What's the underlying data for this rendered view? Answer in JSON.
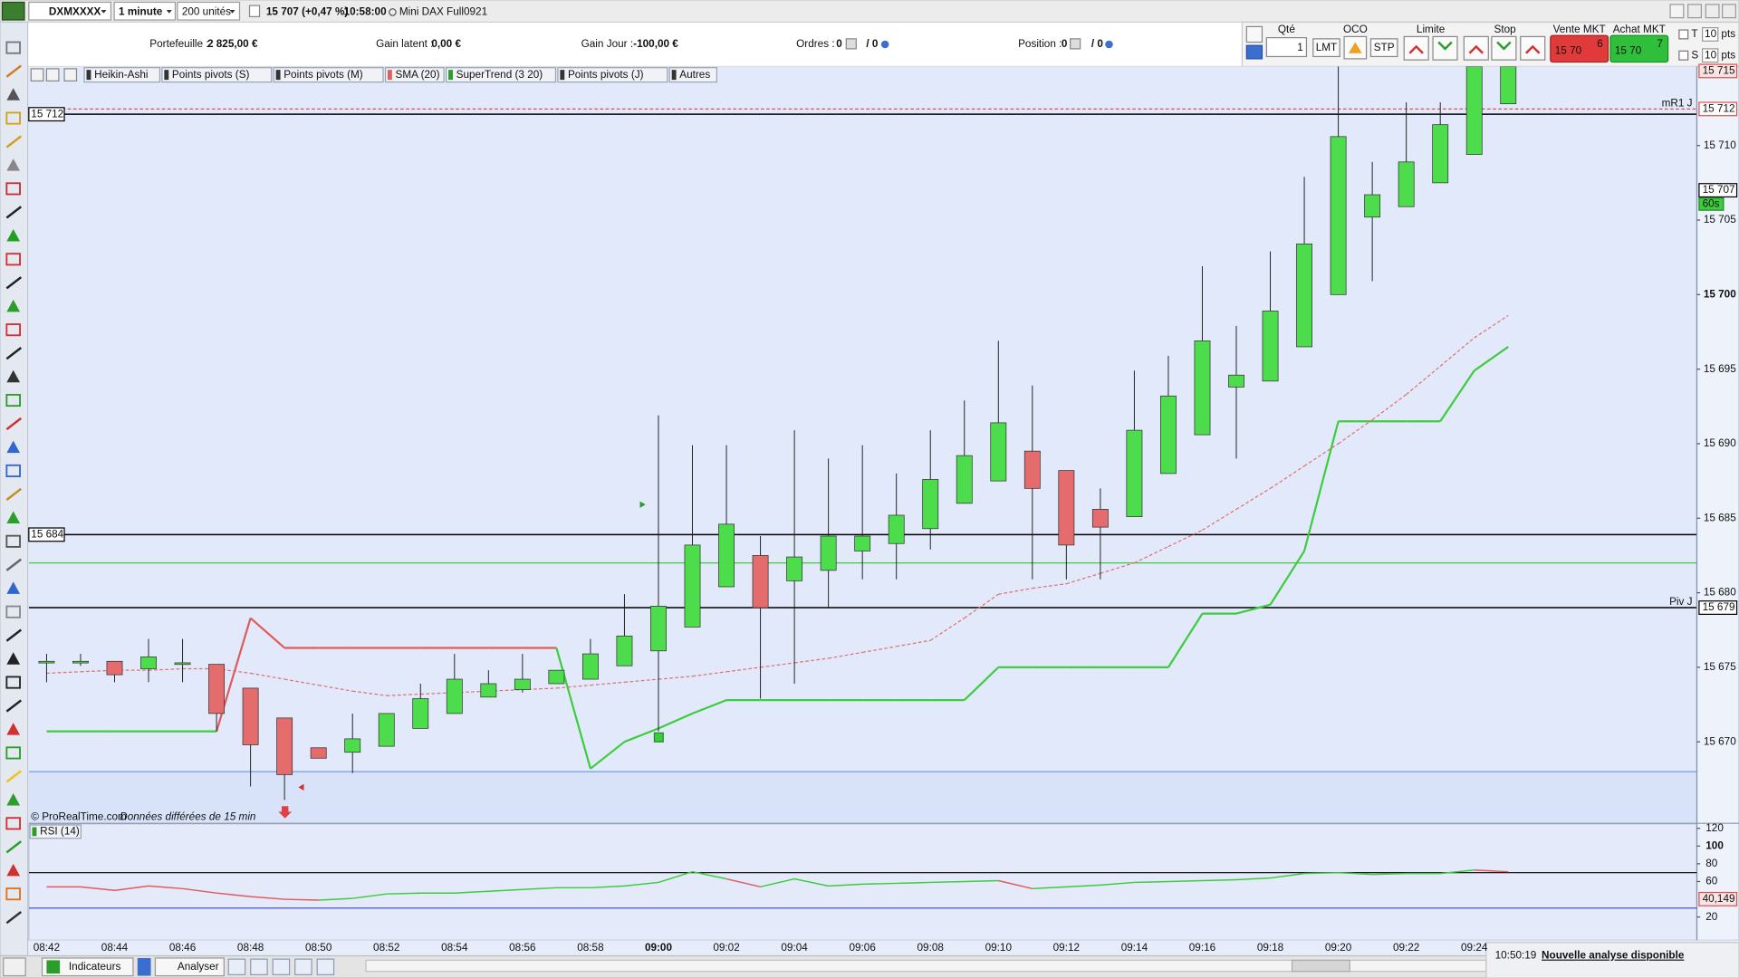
{
  "toolbar": {
    "symbol": "DXMXXXX",
    "interval": "1 minute",
    "units": "200 unités",
    "price_change": "15 707 (+0,47 %)",
    "time": "10:58:00",
    "instrument": "Mini DAX Full0921"
  },
  "order_bar": {
    "portfolio_label": "Portefeuille :",
    "portfolio_value": "2 825,00 €",
    "latent_label": "Gain latent :",
    "latent_value": "0,00 €",
    "day_label": "Gain Jour :",
    "day_value": "-100,00 €",
    "orders_label": "Ordres :",
    "orders_a": "0",
    "orders_b": "/ 0",
    "position_label": "Position :",
    "position_a": "0",
    "position_b": "/ 0",
    "qty_label": "Qté",
    "qty": "1",
    "oco": "OCO",
    "lmt": "LMT",
    "stp": "STP",
    "limit": "Limite",
    "stop": "Stop",
    "sell": "Vente MKT",
    "buy": "Achat MKT",
    "sell_price": "15 70",
    "sell_pip": "6",
    "buy_price": "15 70",
    "buy_pip": "7",
    "t_label": "T",
    "t_value": "10",
    "t_unit": "pts",
    "s_label": "S",
    "s_value": "10",
    "s_unit": "pts"
  },
  "indicator_tabs": [
    "Heikin-Ashi",
    "Points pivots (S)",
    "Points pivots (M)",
    "SMA (20)",
    "SuperTrend (3 20)",
    "Points pivots (J)",
    "Autres"
  ],
  "chart_data": [
    {
      "type": "candlestick",
      "categories": [
        "08:42",
        null,
        "08:44",
        null,
        "08:46",
        null,
        "08:48",
        null,
        "08:50",
        null,
        "08:52",
        null,
        "08:54",
        null,
        "08:56",
        null,
        "08:58",
        null,
        "09:00",
        null,
        "09:02",
        null,
        "09:04",
        null,
        "09:06",
        null,
        "09:08",
        null,
        "09:10",
        null,
        "09:12",
        null,
        "09:14",
        null,
        "09:16",
        null,
        "09:18",
        null,
        "09:20",
        null,
        "09:22",
        null,
        "09:24",
        null
      ],
      "open": [
        15675.3,
        15675.3,
        15675.4,
        15674.9,
        15675.2,
        15675.2,
        15673.6,
        15671.6,
        15669.6,
        15669.3,
        15669.7,
        15670.9,
        15671.9,
        15673.0,
        15673.5,
        15673.9,
        15674.2,
        15675.1,
        15676.1,
        15677.7,
        15680.4,
        15682.5,
        15680.8,
        15681.5,
        15682.8,
        15683.3,
        15684.3,
        15686.0,
        15687.5,
        15689.5,
        15688.2,
        15685.6,
        15685.1,
        15688.0,
        15690.6,
        15693.8,
        15694.2,
        15696.5,
        15700.0,
        15705.2,
        15705.9,
        15707.5,
        15709.4,
        15712.8
      ],
      "high": [
        15675.9,
        15675.9,
        15675.4,
        15676.9,
        15676.9,
        15675.2,
        15673.6,
        15671.6,
        15669.6,
        15671.9,
        15671.9,
        15673.9,
        15675.9,
        15674.8,
        15675.9,
        15674.8,
        15676.9,
        15679.9,
        15691.9,
        15689.9,
        15689.9,
        15683.8,
        15690.9,
        15689.0,
        15689.9,
        15688.0,
        15690.9,
        15692.9,
        15696.9,
        15693.9,
        15688.2,
        15687.0,
        15694.9,
        15695.9,
        15701.9,
        15697.9,
        15702.9,
        15707.9,
        15715.3,
        15708.9,
        15712.9,
        15712.9,
        15715.3,
        15715.3
      ],
      "low": [
        15674.0,
        15675.1,
        15674.0,
        15674.0,
        15674.0,
        15670.7,
        15667.0,
        15666.1,
        15668.9,
        15667.9,
        15669.7,
        15670.9,
        15671.9,
        15673.0,
        15673.3,
        15673.9,
        15674.2,
        15675.1,
        15670.7,
        15677.7,
        15680.4,
        15672.9,
        15673.9,
        15679.0,
        15680.9,
        15680.9,
        15682.9,
        15686.0,
        15687.5,
        15680.9,
        15680.9,
        15680.9,
        15685.1,
        15688.0,
        15690.6,
        15689.0,
        15694.2,
        15696.5,
        15700.0,
        15700.9,
        15705.9,
        15707.5,
        15709.4,
        15712.8
      ],
      "close": [
        15675.4,
        15675.4,
        15674.5,
        15675.7,
        15675.3,
        15671.9,
        15669.8,
        15667.8,
        15668.9,
        15670.2,
        15671.9,
        15672.9,
        15674.2,
        15673.9,
        15674.2,
        15674.8,
        15675.9,
        15677.1,
        15679.1,
        15683.2,
        15684.6,
        15679.0,
        15682.4,
        15683.8,
        15683.8,
        15685.2,
        15687.6,
        15689.2,
        15691.4,
        15687.0,
        15683.2,
        15684.4,
        15690.9,
        15693.2,
        15696.9,
        15694.6,
        15698.9,
        15703.4,
        15710.6,
        15706.7,
        15708.9,
        15711.4,
        15715.3,
        15715.3
      ],
      "up_color": "#4cdc4c",
      "down_color": "#e46c6c",
      "series": [
        {
          "values": [
            15670.7,
            15670.7,
            15670.7,
            15670.7,
            15670.7,
            15670.7,
            15678.3,
            15676.3,
            15676.3,
            15676.3,
            15676.3,
            15676.3,
            15676.3,
            15676.3,
            15676.3,
            15676.3,
            15668.2,
            15670.0,
            15670.9,
            15671.9,
            15672.8,
            15672.8,
            15672.8,
            15672.8,
            15672.8,
            15672.8,
            15672.8,
            15672.8,
            15675.0,
            15675.0,
            15675.0,
            15675.0,
            15675.0,
            15675.0,
            15678.6,
            15678.6,
            15679.2,
            15682.8,
            15691.5,
            15691.5,
            15691.5,
            15691.5,
            15694.9,
            15696.5
          ],
          "point_colors": [
            "#3ccc3c",
            "#3ccc3c",
            "#3ccc3c",
            "#3ccc3c",
            "#3ccc3c",
            "#3ccc3c",
            "#e05a5a",
            "#e05a5a",
            "#e05a5a",
            "#e05a5a",
            "#e05a5a",
            "#e05a5a",
            "#e05a5a",
            "#e05a5a",
            "#e05a5a",
            "#e05a5a",
            "#3ccc3c",
            "#3ccc3c",
            "#3ccc3c",
            "#3ccc3c",
            "#3ccc3c",
            "#3ccc3c",
            "#3ccc3c",
            "#3ccc3c",
            "#3ccc3c",
            "#3ccc3c",
            "#3ccc3c",
            "#3ccc3c",
            "#3ccc3c",
            "#3ccc3c",
            "#3ccc3c",
            "#3ccc3c",
            "#3ccc3c",
            "#3ccc3c",
            "#3ccc3c",
            "#3ccc3c",
            "#3ccc3c",
            "#3ccc3c",
            "#3ccc3c",
            "#3ccc3c",
            "#3ccc3c",
            "#3ccc3c",
            "#3ccc3c",
            "#3ccc3c"
          ]
        },
        {
          "values": [
            15674.6,
            15674.7,
            15674.8,
            15674.8,
            15674.9,
            15674.9,
            15674.6,
            15674.2,
            15673.8,
            15673.4,
            15673.1,
            15673.2,
            15673.3,
            15673.4,
            15673.5,
            15673.6,
            15673.8,
            15674.0,
            15674.2,
            15674.4,
            15674.7,
            15675.0,
            15675.3,
            15675.6,
            15676.0,
            15676.4,
            15676.8,
            15678.3,
            15679.9,
            15680.3,
            15680.6,
            15681.3,
            15682.0,
            15683.1,
            15684.2,
            15685.6,
            15687.0,
            15688.5,
            15690.0,
            15691.6,
            15693.3,
            15695.2,
            15697.1,
            15698.6
          ],
          "color": "#e07070",
          "dashed": true
        }
      ],
      "ylim": [
        15664.57,
        15715.3
      ],
      "yticks": [
        {
          "value": 15670,
          "label": "15 670"
        },
        {
          "value": 15675,
          "label": "15 675"
        },
        {
          "value": 15680,
          "label": "15 680"
        },
        {
          "value": 15685,
          "label": "15 685"
        },
        {
          "value": 15690,
          "label": "15 690"
        },
        {
          "value": 15695,
          "label": "15 695"
        },
        {
          "value": 15700,
          "label": "15 700"
        },
        {
          "value": 15705,
          "label": "15 705"
        },
        {
          "value": 15710,
          "label": "15 710"
        }
      ],
      "levels": [
        {
          "value": 15712.1,
          "color": "#000000",
          "left_label": "15 712"
        },
        {
          "value": 15712.45,
          "color": "#e05050",
          "dashed": true,
          "right_label": "mR1 J",
          "box": "15 712"
        },
        {
          "value": 15683.9,
          "color": "#000000",
          "left_label": "15 684"
        },
        {
          "value": 15682.0,
          "color": "#3ccc3c"
        },
        {
          "value": 15679.0,
          "color": "#000000",
          "right_label": "Piv J",
          "box": "15 679"
        },
        {
          "value": 15668.0,
          "color": "#7799ee"
        }
      ],
      "price_boxes": [
        {
          "value": 15715,
          "label": "15 715",
          "color": "#e05050"
        },
        {
          "value": 15707,
          "label": "15 707",
          "color": "#000000"
        }
      ],
      "timer": "60s",
      "source": "© ProRealTime.com",
      "delay_note": "Données différées de 15 min"
    },
    {
      "type": "line",
      "title": "RSI (14)",
      "values": [
        54,
        54,
        50,
        55,
        52,
        47,
        43,
        40,
        39,
        41,
        46,
        47,
        47,
        49,
        51,
        53,
        53,
        55,
        59,
        71,
        63,
        54,
        63,
        55,
        57,
        58,
        59,
        60,
        61,
        52,
        54,
        56,
        59,
        60,
        61,
        62,
        64,
        69,
        70,
        68,
        69,
        69,
        73,
        71
      ],
      "point_colors": [
        "#e05a5a",
        "#e05a5a",
        "#e05a5a",
        "#e05a5a",
        "#e05a5a",
        "#e05a5a",
        "#e05a5a",
        "#e05a5a",
        "#e05a5a",
        "#3ccc3c",
        "#3ccc3c",
        "#3ccc3c",
        "#3ccc3c",
        "#3ccc3c",
        "#3ccc3c",
        "#3ccc3c",
        "#3ccc3c",
        "#3ccc3c",
        "#3ccc3c",
        "#3ccc3c",
        "#3ccc3c",
        "#e05a5a",
        "#3ccc3c",
        "#3ccc3c",
        "#3ccc3c",
        "#3ccc3c",
        "#3ccc3c",
        "#3ccc3c",
        "#3ccc3c",
        "#e05a5a",
        "#3ccc3c",
        "#3ccc3c",
        "#3ccc3c",
        "#3ccc3c",
        "#3ccc3c",
        "#3ccc3c",
        "#3ccc3c",
        "#3ccc3c",
        "#3ccc3c",
        "#3ccc3c",
        "#3ccc3c",
        "#3ccc3c",
        "#3ccc3c",
        "#e05a5a"
      ],
      "ylim": [
        -6.25,
        125
      ],
      "yticks": [
        20,
        60,
        80,
        100,
        120
      ],
      "levels": [
        {
          "value": 70,
          "color": "#000000"
        },
        {
          "value": 30,
          "color": "#3344cc"
        }
      ],
      "current": {
        "value": 40.149,
        "label": "40,149"
      }
    }
  ],
  "footer": {
    "indicators": "Indicateurs",
    "analyse": "Analyser",
    "clock": "10:50:19",
    "notice": "Nouvelle analyse disponible"
  }
}
